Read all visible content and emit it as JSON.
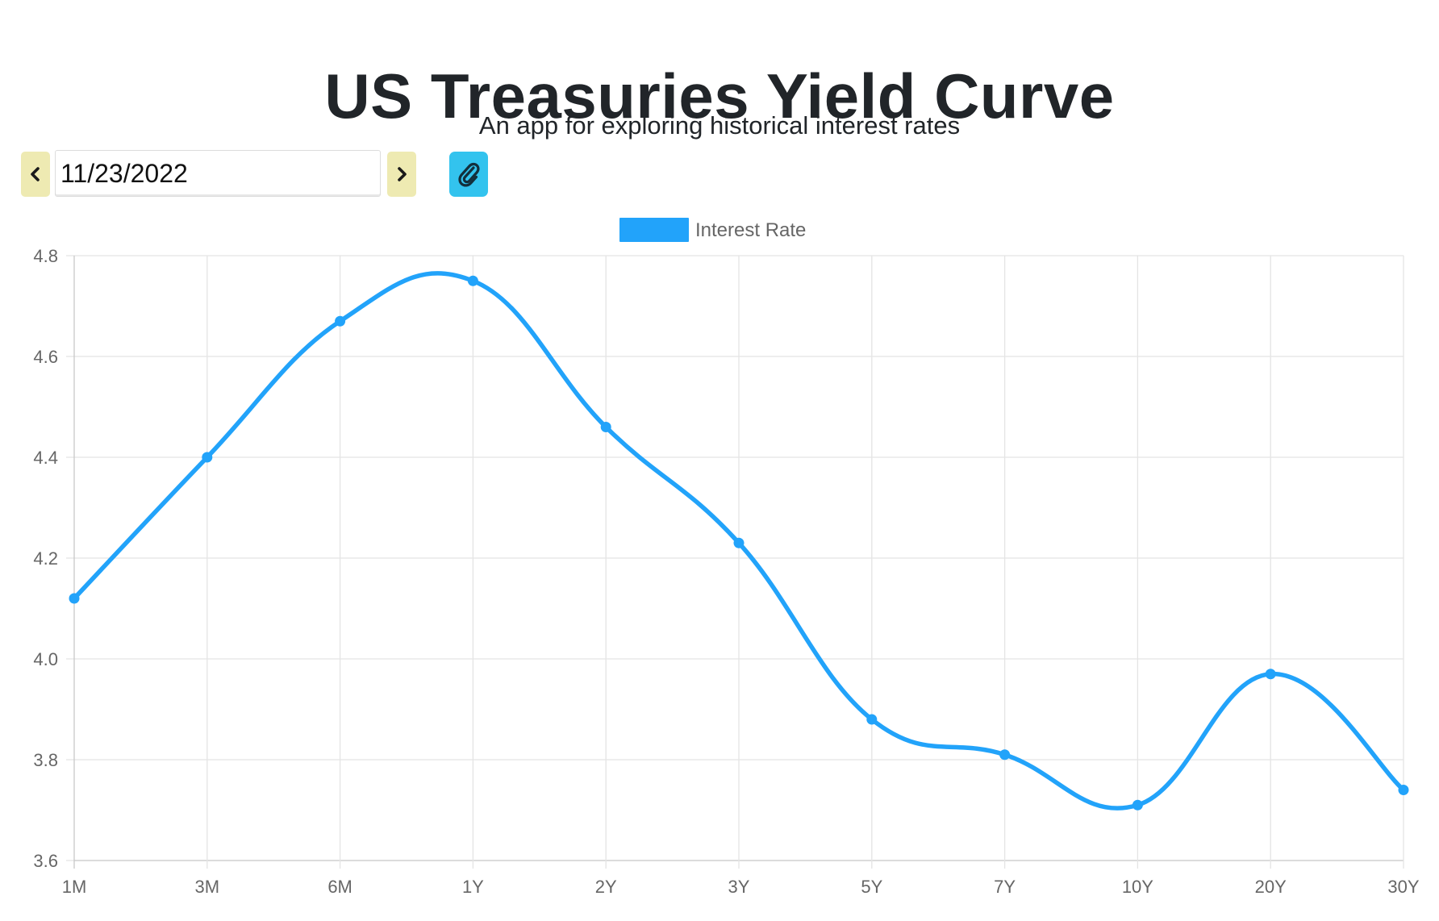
{
  "header": {
    "title": "US Treasuries Yield Curve",
    "subtitle": "An app for exploring historical interest rates"
  },
  "controls": {
    "date_value": "11/23/2022",
    "prev_icon": "chevron-left-icon",
    "next_icon": "chevron-right-icon",
    "link_icon": "paperclip-icon",
    "nav_color": "#eeeab2",
    "link_color": "#33c3ee"
  },
  "chart_data": {
    "type": "line",
    "title": "",
    "xlabel": "",
    "ylabel": "",
    "categories": [
      "1M",
      "3M",
      "6M",
      "1Y",
      "2Y",
      "3Y",
      "5Y",
      "7Y",
      "10Y",
      "20Y",
      "30Y"
    ],
    "series": [
      {
        "name": "Interest Rate",
        "color": "#22a3fa",
        "values": [
          4.12,
          4.4,
          4.67,
          4.75,
          4.46,
          4.23,
          3.88,
          3.81,
          3.71,
          3.97,
          3.74
        ]
      }
    ],
    "ylim": [
      3.6,
      4.8
    ],
    "yticks": [
      "3.6",
      "3.8",
      "4.0",
      "4.2",
      "4.4",
      "4.6",
      "4.8"
    ],
    "grid": true,
    "legend": "top-center",
    "smooth": true
  }
}
